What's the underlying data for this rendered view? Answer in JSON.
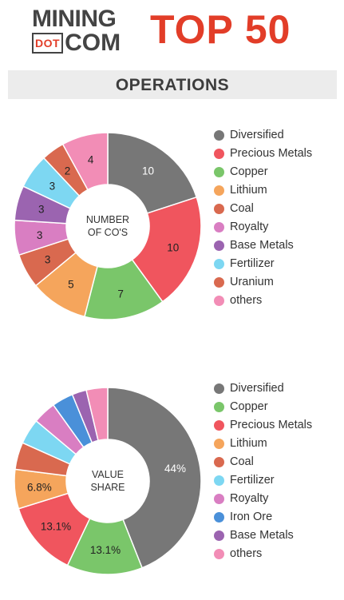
{
  "header": {
    "logo_top": "MINING",
    "logo_dot": "DOT",
    "logo_com": "COM",
    "title": "TOP 50"
  },
  "section_title": "OPERATIONS",
  "chart_data": [
    {
      "type": "pie",
      "center_label_lines": [
        "NUMBER",
        "OF CO'S"
      ],
      "categories": [
        "Diversified",
        "Precious Metals",
        "Copper",
        "Lithium",
        "Coal",
        "Royalty",
        "Base Metals",
        "Fertilizer",
        "Uranium",
        "others"
      ],
      "values": [
        10,
        10,
        7,
        5,
        3,
        3,
        3,
        3,
        2,
        4
      ],
      "data_labels": [
        "10",
        "10",
        "7",
        "5",
        "3",
        "3",
        "3",
        "3",
        "2",
        "4"
      ],
      "colors": [
        "#777777",
        "#f0555e",
        "#7ac66a",
        "#f5a55c",
        "#d9694f",
        "#d97ec2",
        "#9b64b0",
        "#7dd7f2",
        "#d9694f",
        "#f28db6"
      ],
      "legend": {
        "position": "right",
        "entries": [
          "Diversified",
          "Precious Metals",
          "Copper",
          "Lithium",
          "Coal",
          "Royalty",
          "Base Metals",
          "Fertilizer",
          "Uranium",
          "others"
        ],
        "colors": [
          "#777777",
          "#f0555e",
          "#7ac66a",
          "#f5a55c",
          "#d9694f",
          "#d97ec2",
          "#9b64b0",
          "#7dd7f2",
          "#d9694f",
          "#f28db6"
        ]
      }
    },
    {
      "type": "pie",
      "center_label_lines": [
        "VALUE",
        "SHARE"
      ],
      "categories": [
        "Diversified",
        "Copper",
        "Precious Metals",
        "Lithium",
        "Coal",
        "Fertilizer",
        "Royalty",
        "Iron Ore",
        "Base Metals",
        "others"
      ],
      "values": [
        44,
        13.1,
        13.1,
        6.8,
        4.7,
        4.4,
        4.0,
        3.7,
        2.5,
        3.7
      ],
      "data_labels": [
        "44%",
        "13.1%",
        "13.1%",
        "6.8%",
        "",
        "",
        "",
        "",
        "",
        ""
      ],
      "colors": [
        "#777777",
        "#7ac66a",
        "#f0555e",
        "#f5a55c",
        "#d9694f",
        "#7dd7f2",
        "#d97ec2",
        "#4a90d9",
        "#9b64b0",
        "#f28db6"
      ],
      "legend": {
        "position": "right",
        "entries": [
          "Diversified",
          "Copper",
          "Precious Metals",
          "Lithium",
          "Coal",
          "Fertilizer",
          "Royalty",
          "Iron Ore",
          "Base Metals",
          "others"
        ],
        "colors": [
          "#777777",
          "#7ac66a",
          "#f0555e",
          "#f5a55c",
          "#d9694f",
          "#7dd7f2",
          "#d97ec2",
          "#4a90d9",
          "#9b64b0",
          "#f28db6"
        ]
      }
    }
  ]
}
